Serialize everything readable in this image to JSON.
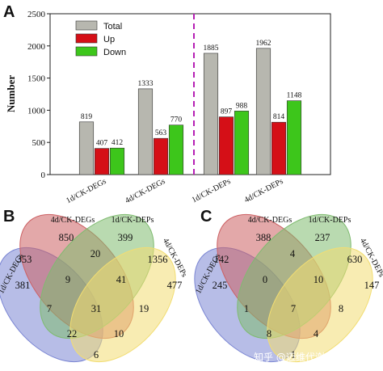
{
  "panels": {
    "a": "A",
    "b": "B",
    "c": "C"
  },
  "chart_data": [
    {
      "type": "bar",
      "panel": "A",
      "title": "",
      "xlabel": "",
      "ylabel": "Number",
      "ylim": [
        0,
        2500
      ],
      "yticks": [
        0,
        500,
        1000,
        1500,
        2000,
        2500
      ],
      "categories": [
        "1d/CK-DEGs",
        "4d/CK-DEGs",
        "1d/CK-DEPs",
        "4d/CK-DEPs"
      ],
      "series": [
        {
          "name": "Total",
          "color": "#b7b7af",
          "values": [
            819,
            1333,
            1885,
            1962
          ]
        },
        {
          "name": "Up",
          "color": "#d50f17",
          "values": [
            407,
            563,
            897,
            814
          ]
        },
        {
          "name": "Down",
          "color": "#3dc61b",
          "values": [
            412,
            770,
            988,
            1148
          ]
        }
      ],
      "legend": "top-left",
      "grid": false,
      "separator": {
        "style": "dashed",
        "color": "#b61fb4",
        "position": "between 4d/CK-DEGs and 1d/CK-DEPs"
      }
    },
    {
      "type": "venn",
      "panel": "B",
      "sets": [
        "1d/CK-DEGs",
        "4d/CK-DEGs",
        "1d/CK-DEPs",
        "4d/CK-DEPs"
      ],
      "colors": [
        "#7b86d3",
        "#cc6063",
        "#7fbb70",
        "#f2dd72"
      ],
      "regions": {
        "1d_only": 381,
        "4d_only": 850,
        "1p_only": 399,
        "4p_only": 477,
        "1d_4d": 353,
        "4d_1p": 20,
        "1p_4p": 1356,
        "1d_4p": 6,
        "1d_4d_1p": 9,
        "4d_1p_4p": 41,
        "1d_1p_4p": 10,
        "1d_4d_4p": 22,
        "1d_1p": 7,
        "4d_4p": 19,
        "all": 31
      }
    },
    {
      "type": "venn",
      "panel": "C",
      "sets": [
        "1d/CK-DEGs",
        "4d/CK-DEGs",
        "1d/CK-DEPs",
        "4d/CK-DEPs"
      ],
      "colors": [
        "#7b86d3",
        "#cc6063",
        "#7fbb70",
        "#f2dd72"
      ],
      "regions": {
        "1d_only": 245,
        "4d_only": 388,
        "1p_only": 237,
        "4p_only": 147,
        "1d_4d": 142,
        "4d_1p": 4,
        "1p_4p": 630,
        "1d_4p": 1,
        "1d_4d_1p": 0,
        "4d_1p_4p": 10,
        "1d_1p_4p": 4,
        "1d_4d_4p": 8,
        "1d_1p": 1,
        "4d_4p": 8,
        "all": 7
      }
    }
  ],
  "watermark": "知乎 @迈维代谢MetWare"
}
